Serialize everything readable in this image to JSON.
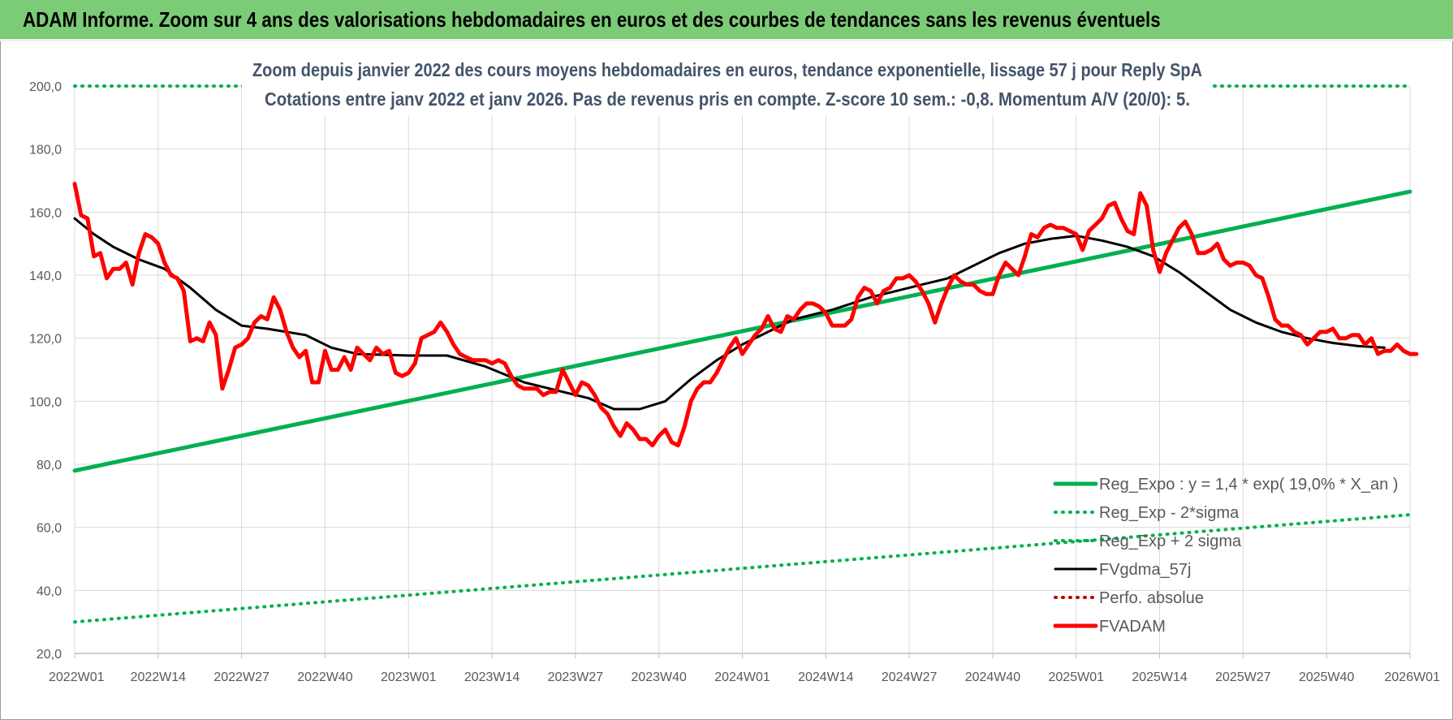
{
  "header": {
    "title": "ADAM Informe. Zoom sur 4 ans des valorisations hebdomadaires en euros et des courbes de tendances sans les revenus éventuels"
  },
  "chart_data": {
    "type": "line",
    "title": "Zoom depuis janvier 2022 des cours moyens hebdomadaires en euros, tendance exponentielle, lissage 57 j pour Reply SpA",
    "subtitle": "Cotations entre janv 2022 et janv 2026. Pas de revenus pris en compte. Z-score 10 sem.: -0,8. Momentum A/V (20/0): 5.",
    "xlabel": "",
    "ylabel": "",
    "ylim": [
      20,
      200
    ],
    "yticks": [
      20,
      40,
      60,
      80,
      100,
      120,
      140,
      160,
      180,
      200
    ],
    "ytick_labels": [
      "20,0",
      "40,0",
      "60,0",
      "80,0",
      "100,0",
      "120,0",
      "140,0",
      "160,0",
      "180,0",
      "200,0"
    ],
    "xtick_labels": [
      "2022W01",
      "2022W14",
      "2022W27",
      "2022W40",
      "2023W01",
      "2023W14",
      "2023W27",
      "2023W40",
      "2024W01",
      "2024W14",
      "2024W27",
      "2024W40",
      "2025W01",
      "2025W14",
      "2025W27",
      "2025W40",
      "2026W01"
    ],
    "grid": true,
    "legend_position": "bottom-right",
    "colors": {
      "reg_expo": "#00b050",
      "fvgdma": "#000000",
      "perfo": "#c00000",
      "fvadam": "#ff0000",
      "grid": "#d9d9d9"
    },
    "series": [
      {
        "name": "Reg_Expo : y = 1,4 * exp( 19,0% *  X_an )",
        "style": "solid",
        "color": "#00b050",
        "points": [
          [
            0,
            78
          ],
          [
            208,
            166.5
          ]
        ]
      },
      {
        "name": "Reg_Exp - 2*sigma",
        "style": "dotted",
        "color": "#00b050",
        "points": [
          [
            0,
            30
          ],
          [
            208,
            64
          ]
        ]
      },
      {
        "name": "Reg_Exp + 2 sigma",
        "style": "dotted",
        "color": "#00b050",
        "points": [
          [
            0,
            200
          ],
          [
            208,
            200
          ]
        ]
      },
      {
        "name": "FVgdma_57j",
        "style": "solid",
        "color": "#000000",
        "points": [
          [
            0,
            158
          ],
          [
            3,
            153
          ],
          [
            6,
            149
          ],
          [
            10,
            145
          ],
          [
            14,
            142
          ],
          [
            18,
            136
          ],
          [
            22,
            129
          ],
          [
            26,
            124
          ],
          [
            30,
            123
          ],
          [
            36,
            121
          ],
          [
            40,
            117
          ],
          [
            44,
            115
          ],
          [
            52,
            114.5
          ],
          [
            58,
            114.5
          ],
          [
            64,
            111
          ],
          [
            70,
            106
          ],
          [
            76,
            103
          ],
          [
            80,
            101
          ],
          [
            84,
            97.5
          ],
          [
            88,
            97.5
          ],
          [
            92,
            100
          ],
          [
            96,
            107
          ],
          [
            100,
            113
          ],
          [
            104,
            118
          ],
          [
            108,
            122
          ],
          [
            112,
            126
          ],
          [
            118,
            129
          ],
          [
            124,
            133
          ],
          [
            128,
            135
          ],
          [
            132,
            137
          ],
          [
            136,
            139
          ],
          [
            140,
            143
          ],
          [
            144,
            147
          ],
          [
            148,
            150
          ],
          [
            152,
            151.5
          ],
          [
            156,
            152.5
          ],
          [
            160,
            151
          ],
          [
            164,
            149
          ],
          [
            168,
            146
          ],
          [
            172,
            141
          ],
          [
            176,
            135
          ],
          [
            180,
            129
          ],
          [
            184,
            125
          ],
          [
            188,
            122
          ],
          [
            192,
            120
          ],
          [
            196,
            118.5
          ],
          [
            200,
            117.5
          ],
          [
            204,
            117
          ]
        ]
      },
      {
        "name": "Perfo. absolue",
        "style": "dotted",
        "color": "#c00000",
        "points": []
      },
      {
        "name": "FVADAM",
        "style": "solid",
        "color": "#ff0000",
        "points": [
          [
            0,
            169
          ],
          [
            1,
            159
          ],
          [
            2,
            158
          ],
          [
            3,
            146
          ],
          [
            4,
            147
          ],
          [
            5,
            139
          ],
          [
            6,
            142
          ],
          [
            7,
            142
          ],
          [
            8,
            144
          ],
          [
            9,
            137
          ],
          [
            10,
            147
          ],
          [
            11,
            153
          ],
          [
            12,
            152
          ],
          [
            13,
            150
          ],
          [
            14,
            144
          ],
          [
            15,
            140
          ],
          [
            16,
            139
          ],
          [
            17,
            135
          ],
          [
            18,
            119
          ],
          [
            19,
            120
          ],
          [
            20,
            119
          ],
          [
            21,
            125
          ],
          [
            22,
            121
          ],
          [
            23,
            104
          ],
          [
            24,
            110
          ],
          [
            25,
            117
          ],
          [
            26,
            118
          ],
          [
            27,
            120
          ],
          [
            28,
            125
          ],
          [
            29,
            127
          ],
          [
            30,
            126
          ],
          [
            31,
            133
          ],
          [
            32,
            129
          ],
          [
            33,
            122
          ],
          [
            34,
            117
          ],
          [
            35,
            114
          ],
          [
            36,
            116
          ],
          [
            37,
            106
          ],
          [
            38,
            106
          ],
          [
            39,
            116
          ],
          [
            40,
            110
          ],
          [
            41,
            110
          ],
          [
            42,
            114
          ],
          [
            43,
            110
          ],
          [
            44,
            117
          ],
          [
            45,
            115
          ],
          [
            46,
            113
          ],
          [
            47,
            117
          ],
          [
            48,
            115
          ],
          [
            49,
            116
          ],
          [
            50,
            109
          ],
          [
            51,
            108
          ],
          [
            52,
            109
          ],
          [
            53,
            112
          ],
          [
            54,
            120
          ],
          [
            55,
            121
          ],
          [
            56,
            122
          ],
          [
            57,
            125
          ],
          [
            58,
            122
          ],
          [
            59,
            118
          ],
          [
            60,
            115
          ],
          [
            61,
            114
          ],
          [
            62,
            113
          ],
          [
            63,
            113
          ],
          [
            64,
            113
          ],
          [
            65,
            112
          ],
          [
            66,
            113
          ],
          [
            67,
            112
          ],
          [
            68,
            108
          ],
          [
            69,
            105
          ],
          [
            70,
            104
          ],
          [
            71,
            104
          ],
          [
            72,
            104
          ],
          [
            73,
            102
          ],
          [
            74,
            103
          ],
          [
            75,
            103
          ],
          [
            76,
            110
          ],
          [
            77,
            106
          ],
          [
            78,
            102
          ],
          [
            79,
            106
          ],
          [
            80,
            105
          ],
          [
            81,
            102
          ],
          [
            82,
            98
          ],
          [
            83,
            96
          ],
          [
            84,
            92
          ],
          [
            85,
            89
          ],
          [
            86,
            93
          ],
          [
            87,
            91
          ],
          [
            88,
            88
          ],
          [
            89,
            88
          ],
          [
            90,
            86
          ],
          [
            91,
            89
          ],
          [
            92,
            91
          ],
          [
            93,
            87
          ],
          [
            94,
            86
          ],
          [
            95,
            92
          ],
          [
            96,
            100
          ],
          [
            97,
            104
          ],
          [
            98,
            106
          ],
          [
            99,
            106
          ],
          [
            100,
            109
          ],
          [
            101,
            113
          ],
          [
            102,
            117
          ],
          [
            103,
            120
          ],
          [
            104,
            115
          ],
          [
            105,
            118
          ],
          [
            106,
            121
          ],
          [
            107,
            123
          ],
          [
            108,
            127
          ],
          [
            109,
            123
          ],
          [
            110,
            122
          ],
          [
            111,
            127
          ],
          [
            112,
            126
          ],
          [
            113,
            129
          ],
          [
            114,
            131
          ],
          [
            115,
            131
          ],
          [
            116,
            130
          ],
          [
            117,
            128
          ],
          [
            118,
            124
          ],
          [
            119,
            124
          ],
          [
            120,
            124
          ],
          [
            121,
            126
          ],
          [
            122,
            133
          ],
          [
            123,
            136
          ],
          [
            124,
            135
          ],
          [
            125,
            131
          ],
          [
            126,
            135
          ],
          [
            127,
            136
          ],
          [
            128,
            139
          ],
          [
            129,
            139
          ],
          [
            130,
            140
          ],
          [
            131,
            138
          ],
          [
            132,
            135
          ],
          [
            133,
            131
          ],
          [
            134,
            125
          ],
          [
            135,
            131
          ],
          [
            136,
            136
          ],
          [
            137,
            140
          ],
          [
            138,
            138
          ],
          [
            139,
            137
          ],
          [
            140,
            137
          ],
          [
            141,
            135
          ],
          [
            142,
            134
          ],
          [
            143,
            134
          ],
          [
            144,
            140
          ],
          [
            145,
            144
          ],
          [
            146,
            142
          ],
          [
            147,
            140
          ],
          [
            148,
            146
          ],
          [
            149,
            153
          ],
          [
            150,
            152
          ],
          [
            151,
            155
          ],
          [
            152,
            156
          ],
          [
            153,
            155
          ],
          [
            154,
            155
          ],
          [
            155,
            154
          ],
          [
            156,
            153
          ],
          [
            157,
            148
          ],
          [
            158,
            154
          ],
          [
            159,
            156
          ],
          [
            160,
            158
          ],
          [
            161,
            162
          ],
          [
            162,
            163
          ],
          [
            163,
            158
          ],
          [
            164,
            154
          ],
          [
            165,
            153
          ],
          [
            166,
            166
          ],
          [
            167,
            162
          ],
          [
            168,
            148
          ],
          [
            169,
            141
          ],
          [
            170,
            147
          ],
          [
            171,
            151
          ],
          [
            172,
            155
          ],
          [
            173,
            157
          ],
          [
            174,
            153
          ],
          [
            175,
            147
          ],
          [
            176,
            147
          ],
          [
            177,
            148
          ],
          [
            178,
            150
          ],
          [
            179,
            145
          ],
          [
            180,
            143
          ],
          [
            181,
            144
          ],
          [
            182,
            144
          ],
          [
            183,
            143
          ],
          [
            184,
            140
          ],
          [
            185,
            139
          ],
          [
            186,
            133
          ],
          [
            187,
            126
          ],
          [
            188,
            124
          ],
          [
            189,
            124
          ],
          [
            190,
            122
          ],
          [
            191,
            121
          ],
          [
            192,
            118
          ],
          [
            193,
            120
          ],
          [
            194,
            122
          ],
          [
            195,
            122
          ],
          [
            196,
            123
          ],
          [
            197,
            120
          ],
          [
            198,
            120
          ],
          [
            199,
            121
          ],
          [
            200,
            121
          ],
          [
            201,
            118
          ],
          [
            202,
            120
          ],
          [
            203,
            115
          ],
          [
            204,
            116
          ],
          [
            205,
            116
          ],
          [
            206,
            118
          ],
          [
            207,
            116
          ],
          [
            208,
            115
          ],
          [
            209,
            115
          ]
        ]
      }
    ]
  }
}
